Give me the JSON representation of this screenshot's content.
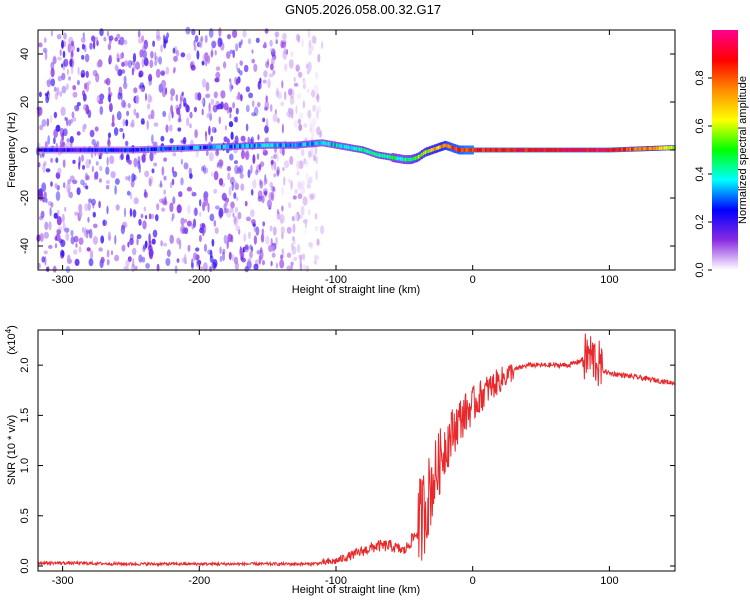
{
  "title": "GN05.2026.058.00.32.G17",
  "chart_data": [
    {
      "type": "heatmap",
      "name": "spectrogram",
      "xlabel": "Height of straight line (km)",
      "ylabel": "Frequency (Hz)",
      "xlim": [
        -318,
        148
      ],
      "ylim": [
        -50,
        50
      ],
      "xticks": [
        -300,
        -200,
        -100,
        0,
        100
      ],
      "xtick_labels": [
        "-300",
        "-200",
        "-100",
        "0",
        "100"
      ],
      "yticks": [
        -40,
        -20,
        0,
        20,
        40
      ],
      "ytick_labels": [
        "-40",
        "-20",
        "0",
        "20",
        "40"
      ],
      "colorbar": {
        "label": "Normalized spectral amplitude",
        "range": [
          0,
          1
        ],
        "ticks": [
          0.0,
          0.2,
          0.4,
          0.6,
          0.8
        ],
        "tick_labels": [
          "0.0",
          "0.2",
          "0.4",
          "0.6",
          "0.8"
        ],
        "colors": [
          "#ffffff",
          "#8a2be2",
          "#0000ff",
          "#00ffff",
          "#00ff00",
          "#ffff00",
          "#ff8c00",
          "#ff0000",
          "#ff0090"
        ]
      },
      "ridge": {
        "x": [
          -318,
          -250,
          -200,
          -150,
          -130,
          -110,
          -90,
          -80,
          -70,
          -60,
          -50,
          -45,
          -40,
          -35,
          -30,
          -25,
          -20,
          -15,
          -10,
          -5,
          0,
          50,
          100,
          148
        ],
        "y": [
          0,
          0,
          1,
          2,
          2,
          3,
          1,
          0,
          -2,
          -3,
          -4,
          -4,
          -3,
          -1,
          0,
          1,
          2,
          1,
          0,
          0,
          0,
          0,
          0,
          1
        ],
        "amplitude": [
          0.2,
          0.25,
          0.3,
          0.35,
          0.35,
          0.35,
          0.4,
          0.45,
          0.45,
          0.45,
          0.4,
          0.5,
          0.55,
          0.6,
          0.65,
          0.7,
          0.75,
          0.8,
          0.8,
          0.85,
          0.85,
          0.9,
          0.9,
          0.6
        ]
      },
      "noise_region_x": [
        -318,
        -110
      ]
    },
    {
      "type": "line",
      "name": "snr",
      "xlabel": "Height of straight line (km)",
      "ylabel": "SNR (10 * v/v)",
      "y_multiplier_label": "(x10",
      "y_multiplier_exp": "4",
      "y_multiplier_close": ")",
      "xlim": [
        -318,
        148
      ],
      "ylim": [
        -0.05,
        2.35
      ],
      "xticks": [
        -300,
        -200,
        -100,
        0,
        100
      ],
      "xtick_labels": [
        "-300",
        "-200",
        "-100",
        "0",
        "100"
      ],
      "yticks": [
        0.0,
        0.5,
        1.0,
        1.5,
        2.0
      ],
      "ytick_labels": [
        "0.0",
        "0.5",
        "1.0",
        "1.5",
        "2.0"
      ],
      "color": "#e8282b",
      "x": [
        -318,
        -300,
        -250,
        -200,
        -150,
        -120,
        -110,
        -100,
        -90,
        -80,
        -70,
        -60,
        -50,
        -40,
        -30,
        -20,
        -10,
        0,
        10,
        20,
        30,
        40,
        50,
        60,
        70,
        80,
        85,
        90,
        95,
        100,
        120,
        148
      ],
      "y": [
        0.03,
        0.03,
        0.02,
        0.02,
        0.02,
        0.02,
        0.03,
        0.05,
        0.1,
        0.15,
        0.2,
        0.2,
        0.15,
        0.35,
        0.8,
        1.2,
        1.45,
        1.6,
        1.75,
        1.85,
        1.95,
        2.0,
        2.0,
        2.0,
        2.0,
        2.05,
        2.1,
        2.05,
        1.95,
        1.92,
        1.88,
        1.82
      ]
    }
  ]
}
